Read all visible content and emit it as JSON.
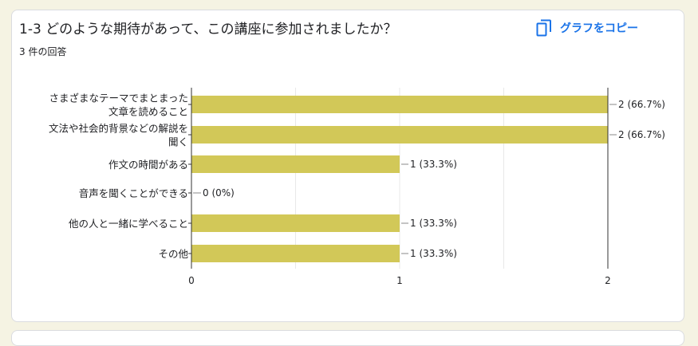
{
  "question": {
    "title": "1-3 どのような期待があって、この講座に参加されましたか？",
    "response_count": "3 件の回答",
    "copy_label": "グラフをコピー",
    "copy_icon": "copy-icon"
  },
  "colors": {
    "bar": "#d2c858",
    "accent": "#1a73e8",
    "page_bg": "#f5f3e3"
  },
  "chart_data": {
    "type": "bar",
    "orientation": "horizontal",
    "categories": [
      [
        "さまざまなテーマでまとまった",
        "文章を読めること"
      ],
      [
        "文法や社会的背景などの解説を",
        "聞く"
      ],
      [
        "作文の時間がある"
      ],
      [
        "音声を聞くことができる"
      ],
      [
        "他の人と一緒に学べること"
      ],
      [
        "その他"
      ]
    ],
    "values": [
      2,
      2,
      1,
      0,
      1,
      1
    ],
    "value_labels": [
      "2 (66.7%)",
      "2 (66.7%)",
      "1 (33.3%)",
      "0 (0%)",
      "1 (33.3%)",
      "1 (33.3%)"
    ],
    "xlim": [
      0,
      2
    ],
    "xticks": [
      "0",
      "1",
      "2"
    ],
    "grid": true,
    "legend": "none"
  }
}
